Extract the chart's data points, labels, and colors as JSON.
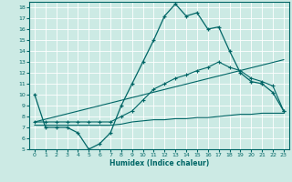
{
  "title": "",
  "xlabel": "Humidex (Indice chaleur)",
  "xlim": [
    -0.5,
    23.5
  ],
  "ylim": [
    5,
    18.5
  ],
  "xticks": [
    0,
    1,
    2,
    3,
    4,
    5,
    6,
    7,
    8,
    9,
    10,
    11,
    12,
    13,
    14,
    15,
    16,
    17,
    18,
    19,
    20,
    21,
    22,
    23
  ],
  "yticks": [
    5,
    6,
    7,
    8,
    9,
    10,
    11,
    12,
    13,
    14,
    15,
    16,
    17,
    18
  ],
  "bg_color": "#cceae4",
  "line_color": "#006666",
  "grid_color": "#ffffff",
  "line1_x": [
    0,
    1,
    2,
    3,
    4,
    5,
    6,
    7,
    8,
    9,
    10,
    11,
    12,
    13,
    14,
    15,
    16,
    17,
    18,
    19,
    20,
    21,
    22,
    23
  ],
  "line1_y": [
    10,
    7,
    7,
    7,
    6.5,
    5,
    5.5,
    6.5,
    9,
    11,
    13,
    15,
    17.2,
    18.3,
    17.2,
    17.5,
    16,
    16.2,
    14,
    12,
    11.2,
    11,
    10.2,
    8.5
  ],
  "line2_x": [
    0,
    1,
    2,
    3,
    4,
    5,
    6,
    7,
    8,
    9,
    10,
    11,
    12,
    13,
    14,
    15,
    16,
    17,
    18,
    19,
    20,
    21,
    22,
    23
  ],
  "line2_y": [
    7.2,
    7.2,
    7.2,
    7.2,
    7.2,
    7.2,
    7.2,
    7.2,
    7.3,
    7.5,
    7.6,
    7.7,
    7.7,
    7.8,
    7.8,
    7.9,
    7.9,
    8.0,
    8.1,
    8.2,
    8.2,
    8.3,
    8.3,
    8.3
  ],
  "line3_x": [
    0,
    1,
    2,
    3,
    4,
    5,
    6,
    7,
    8,
    9,
    10,
    11,
    12,
    13,
    14,
    15,
    16,
    17,
    18,
    19,
    20,
    21,
    22,
    23
  ],
  "line3_y": [
    7.5,
    7.5,
    7.5,
    7.5,
    7.5,
    7.5,
    7.5,
    7.5,
    8.0,
    8.5,
    9.5,
    10.5,
    11.0,
    11.5,
    11.8,
    12.2,
    12.5,
    13.0,
    12.5,
    12.2,
    11.5,
    11.2,
    10.8,
    8.5
  ],
  "line4_x": [
    0,
    23
  ],
  "line4_y": [
    7.5,
    13.2
  ],
  "figsize": [
    3.2,
    2.0
  ],
  "dpi": 100
}
